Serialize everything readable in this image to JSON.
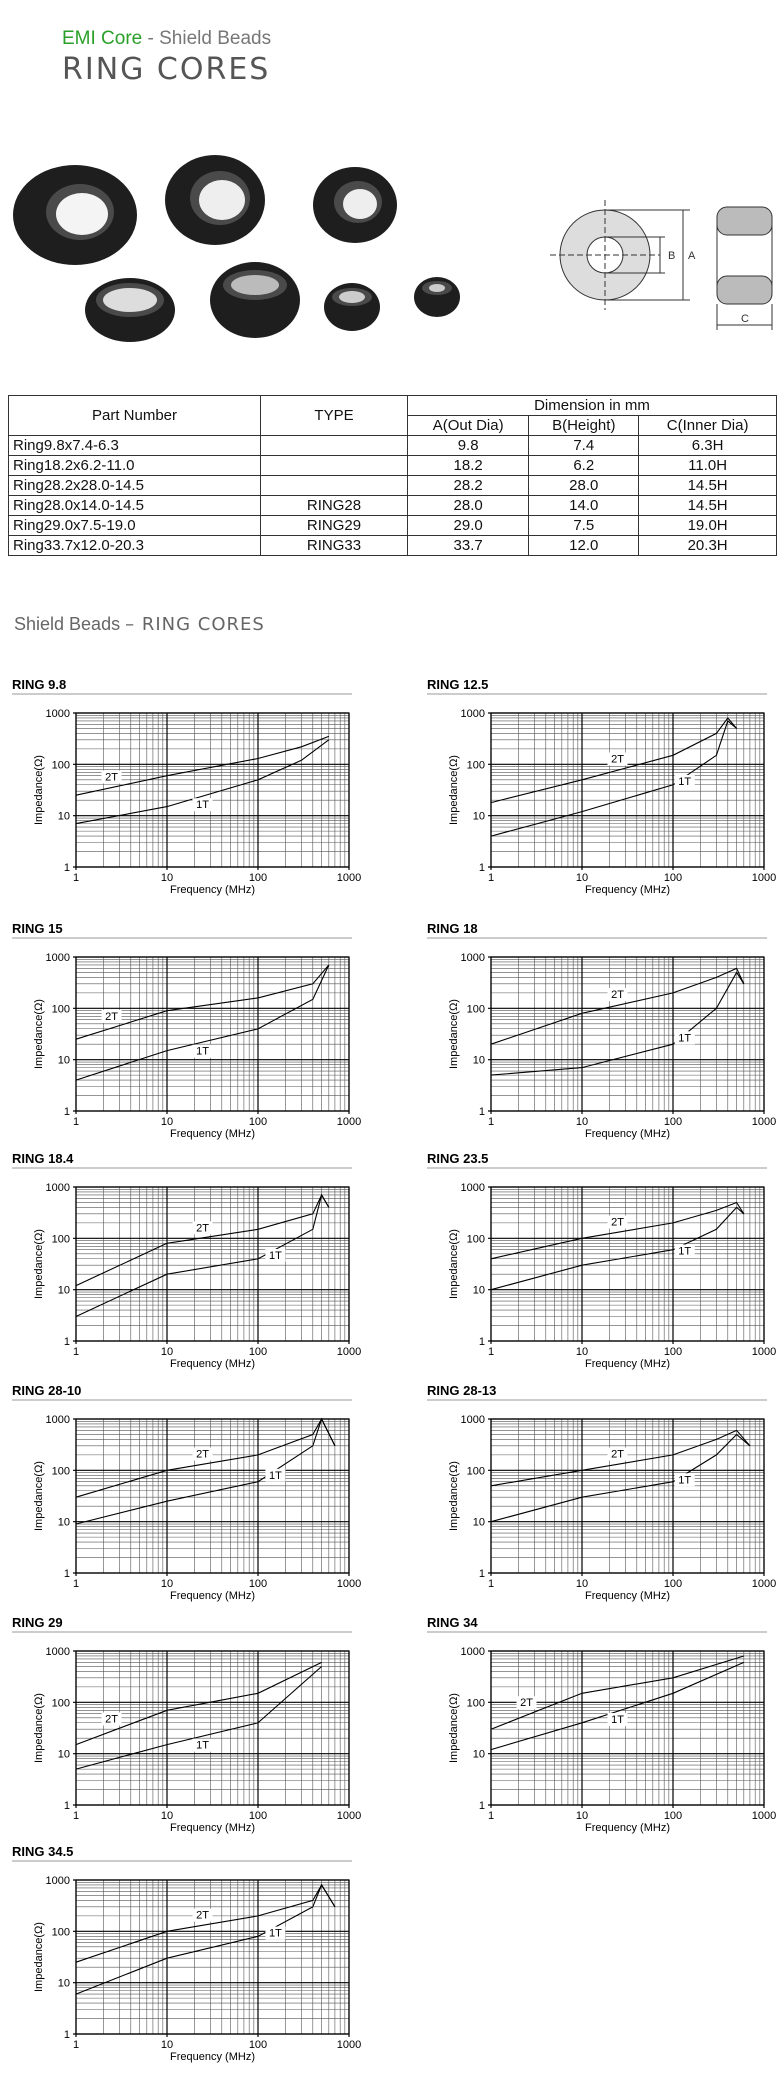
{
  "header": {
    "brand": "EMI Core",
    "subtitle": "- Shield Beads",
    "title": "RING CORES"
  },
  "diagram": {
    "labels": [
      "B",
      "A",
      "C"
    ]
  },
  "table": {
    "headers": [
      "Part   Number",
      "TYPE",
      "Dimension in mm"
    ],
    "subheaders": [
      "A(Out Dia)",
      "B(Height)",
      "C(Inner Dia)"
    ],
    "rows": [
      [
        "Ring9.8x7.4-6.3",
        null,
        "9.8",
        "7.4",
        "6.3H"
      ],
      [
        "Ring18.2x6.2-11.0",
        null,
        "18.2",
        "6.2",
        "11.0H"
      ],
      [
        "Ring28.2x28.0-14.5",
        null,
        "28.2",
        "28.0",
        "14.5H"
      ],
      [
        "Ring28.0x14.0-14.5",
        "RING28",
        "28.0",
        "14.0",
        "14.5H"
      ],
      [
        "Ring29.0x7.5-19.0",
        "RING29",
        "29.0",
        "7.5",
        "19.0H"
      ],
      [
        "Ring33.7x12.0-20.3",
        "RING33",
        "33.7",
        "12.0",
        "20.3H"
      ]
    ]
  },
  "section": {
    "prefix": "Shield Beads",
    "title": "– RING CORES"
  },
  "charts": [
    {
      "type": "line",
      "title": "RING 9.8",
      "xlabel": "Frequency (MHz)",
      "ylabel": "Impedance(Ω)",
      "xlim": [
        1,
        1000
      ],
      "ylim": [
        1,
        1000
      ],
      "xticks": [
        1,
        10,
        100,
        1000
      ],
      "yticks": [
        1,
        10,
        100,
        1000
      ],
      "log": true,
      "grid": true,
      "series": [
        {
          "name": "2T",
          "color": "#000000",
          "x": [
            1,
            10,
            100,
            300,
            600
          ],
          "values": [
            25,
            60,
            130,
            220,
            350
          ]
        },
        {
          "name": "1T",
          "color": "#000000",
          "x": [
            1,
            10,
            100,
            300,
            600
          ],
          "values": [
            7,
            15,
            50,
            120,
            300
          ]
        }
      ]
    },
    {
      "type": "line",
      "title": "RING 12.5",
      "xlabel": "Frequency (MHz)",
      "ylabel": "Impedance(Ω)",
      "xlim": [
        1,
        1000
      ],
      "ylim": [
        1,
        1000
      ],
      "xticks": [
        1,
        10,
        100,
        1000
      ],
      "yticks": [
        1,
        10,
        100,
        1000
      ],
      "log": true,
      "grid": true,
      "series": [
        {
          "name": "2T",
          "color": "#000000",
          "x": [
            1,
            10,
            100,
            300,
            400,
            500
          ],
          "values": [
            18,
            50,
            150,
            400,
            800,
            500
          ]
        },
        {
          "name": "1T",
          "color": "#000000",
          "x": [
            1,
            10,
            100,
            300,
            400,
            500
          ],
          "values": [
            4,
            12,
            40,
            150,
            700,
            500
          ]
        }
      ]
    },
    {
      "type": "line",
      "title": "RING 15",
      "xlabel": "Frequency (MHz)",
      "ylabel": "Impedance(Ω)",
      "xlim": [
        1,
        1000
      ],
      "ylim": [
        1,
        1000
      ],
      "xticks": [
        1,
        10,
        100,
        1000
      ],
      "yticks": [
        1,
        10,
        100,
        1000
      ],
      "log": true,
      "grid": true,
      "series": [
        {
          "name": "2T",
          "color": "#000000",
          "x": [
            1,
            10,
            100,
            400,
            600
          ],
          "values": [
            25,
            90,
            160,
            300,
            700
          ]
        },
        {
          "name": "1T",
          "color": "#000000",
          "x": [
            1,
            10,
            100,
            400,
            600
          ],
          "values": [
            4,
            15,
            40,
            150,
            700
          ]
        }
      ]
    },
    {
      "type": "line",
      "title": "RING 18",
      "xlabel": "Frequency (MHz)",
      "ylabel": "Impedance(Ω)",
      "xlim": [
        1,
        1000
      ],
      "ylim": [
        1,
        1000
      ],
      "xticks": [
        1,
        10,
        100,
        1000
      ],
      "yticks": [
        1,
        10,
        100,
        1000
      ],
      "log": true,
      "grid": true,
      "series": [
        {
          "name": "2T",
          "color": "#000000",
          "x": [
            1,
            10,
            100,
            300,
            500,
            600
          ],
          "values": [
            20,
            80,
            200,
            400,
            600,
            300
          ]
        },
        {
          "name": "1T",
          "color": "#000000",
          "x": [
            1,
            10,
            100,
            300,
            500,
            600
          ],
          "values": [
            5,
            7,
            20,
            100,
            500,
            300
          ]
        }
      ]
    },
    {
      "type": "line",
      "title": "RING 18.4",
      "xlabel": "Frequency (MHz)",
      "ylabel": "Impedance(Ω)",
      "xlim": [
        1,
        1000
      ],
      "ylim": [
        1,
        1000
      ],
      "xticks": [
        1,
        10,
        100,
        1000
      ],
      "yticks": [
        1,
        10,
        100,
        1000
      ],
      "log": true,
      "grid": true,
      "series": [
        {
          "name": "2T",
          "color": "#000000",
          "x": [
            1,
            10,
            100,
            400,
            500,
            600
          ],
          "values": [
            12,
            80,
            150,
            300,
            700,
            400
          ]
        },
        {
          "name": "1T",
          "color": "#000000",
          "x": [
            1,
            10,
            100,
            400,
            500,
            600
          ],
          "values": [
            3,
            20,
            40,
            150,
            700,
            400
          ]
        }
      ]
    },
    {
      "type": "line",
      "title": "RING 23.5",
      "xlabel": "Frequency (MHz)",
      "ylabel": "Impedance(Ω)",
      "xlim": [
        1,
        1000
      ],
      "ylim": [
        1,
        1000
      ],
      "xticks": [
        1,
        10,
        100,
        1000
      ],
      "yticks": [
        1,
        10,
        100,
        1000
      ],
      "log": true,
      "grid": true,
      "series": [
        {
          "name": "2T",
          "color": "#000000",
          "x": [
            1,
            10,
            100,
            300,
            500,
            600
          ],
          "values": [
            40,
            100,
            200,
            350,
            500,
            300
          ]
        },
        {
          "name": "1T",
          "color": "#000000",
          "x": [
            1,
            10,
            100,
            300,
            500,
            600
          ],
          "values": [
            10,
            30,
            60,
            150,
            400,
            300
          ]
        }
      ]
    },
    {
      "type": "line",
      "title": "RING 28-10",
      "xlabel": "Frequency (MHz)",
      "ylabel": "Impedance(Ω)",
      "xlim": [
        1,
        1000
      ],
      "ylim": [
        1,
        1000
      ],
      "xticks": [
        1,
        10,
        100,
        1000
      ],
      "yticks": [
        1,
        10,
        100,
        1000
      ],
      "log": true,
      "grid": true,
      "series": [
        {
          "name": "2T",
          "color": "#000000",
          "x": [
            1,
            10,
            100,
            400,
            500,
            700
          ],
          "values": [
            30,
            100,
            200,
            500,
            1000,
            300
          ]
        },
        {
          "name": "1T",
          "color": "#000000",
          "x": [
            1,
            10,
            100,
            400,
            500,
            700
          ],
          "values": [
            9,
            25,
            60,
            300,
            1000,
            300
          ]
        }
      ]
    },
    {
      "type": "line",
      "title": "RING 28-13",
      "xlabel": "Frequency (MHz)",
      "ylabel": "Impedance(Ω)",
      "xlim": [
        1,
        1000
      ],
      "ylim": [
        1,
        1000
      ],
      "xticks": [
        1,
        10,
        100,
        1000
      ],
      "yticks": [
        1,
        10,
        100,
        1000
      ],
      "log": true,
      "grid": true,
      "series": [
        {
          "name": "2T",
          "color": "#000000",
          "x": [
            1,
            10,
            100,
            300,
            500,
            700
          ],
          "values": [
            50,
            100,
            200,
            400,
            600,
            300
          ]
        },
        {
          "name": "1T",
          "color": "#000000",
          "x": [
            1,
            10,
            100,
            300,
            500,
            700
          ],
          "values": [
            10,
            30,
            60,
            200,
            500,
            300
          ]
        }
      ]
    },
    {
      "type": "line",
      "title": "RING 29",
      "xlabel": "Frequency (MHz)",
      "ylabel": "Impedance(Ω)",
      "xlim": [
        1,
        1000
      ],
      "ylim": [
        1,
        1000
      ],
      "xticks": [
        1,
        10,
        100,
        1000
      ],
      "yticks": [
        1,
        10,
        100,
        1000
      ],
      "log": true,
      "grid": true,
      "series": [
        {
          "name": "2T",
          "color": "#000000",
          "x": [
            1,
            10,
            100,
            500
          ],
          "values": [
            15,
            70,
            150,
            600
          ]
        },
        {
          "name": "1T",
          "color": "#000000",
          "x": [
            1,
            10,
            100,
            500
          ],
          "values": [
            5,
            15,
            40,
            500
          ]
        }
      ]
    },
    {
      "type": "line",
      "title": "RING 34",
      "xlabel": "Frequency (MHz)",
      "ylabel": "Impedance(Ω)",
      "xlim": [
        1,
        1000
      ],
      "ylim": [
        1,
        1000
      ],
      "xticks": [
        1,
        10,
        100,
        1000
      ],
      "yticks": [
        1,
        10,
        100,
        1000
      ],
      "log": true,
      "grid": true,
      "series": [
        {
          "name": "2T",
          "color": "#000000",
          "x": [
            1,
            10,
            100,
            600
          ],
          "values": [
            30,
            150,
            300,
            800
          ]
        },
        {
          "name": "1T",
          "color": "#000000",
          "x": [
            1,
            10,
            100,
            600
          ],
          "values": [
            12,
            40,
            150,
            600
          ]
        }
      ]
    },
    {
      "type": "line",
      "title": "RING 34.5",
      "xlabel": "Frequency (MHz)",
      "ylabel": "Impedance(Ω)",
      "xlim": [
        1,
        1000
      ],
      "ylim": [
        1,
        1000
      ],
      "xticks": [
        1,
        10,
        100,
        1000
      ],
      "yticks": [
        1,
        10,
        100,
        1000
      ],
      "log": true,
      "grid": true,
      "series": [
        {
          "name": "2T",
          "color": "#000000",
          "x": [
            1,
            10,
            100,
            400,
            500,
            700
          ],
          "values": [
            25,
            100,
            200,
            400,
            800,
            300
          ]
        },
        {
          "name": "1T",
          "color": "#000000",
          "x": [
            1,
            10,
            100,
            400,
            500,
            700
          ],
          "values": [
            6,
            30,
            80,
            300,
            800,
            300
          ]
        }
      ]
    }
  ]
}
